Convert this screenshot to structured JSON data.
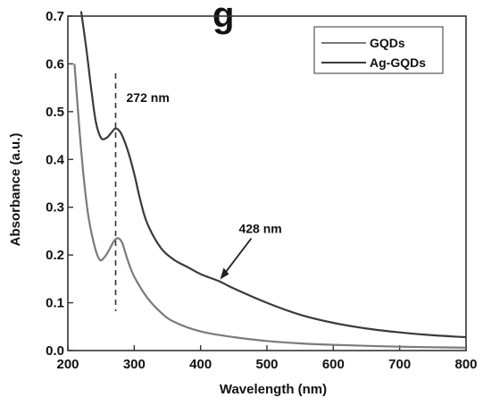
{
  "chart_data": {
    "type": "line",
    "panel_label": "g",
    "title": "",
    "xlabel": "Wavelength (nm)",
    "ylabel": "Absorbance (a.u.)",
    "xlim": [
      200,
      800
    ],
    "ylim": [
      0.0,
      0.7
    ],
    "x_ticks": [
      200,
      300,
      400,
      500,
      600,
      700,
      800
    ],
    "y_ticks": [
      0.0,
      0.1,
      0.2,
      0.3,
      0.4,
      0.5,
      0.6,
      0.7
    ],
    "y_tick_labels": [
      "0.0",
      "0.1",
      "0.2",
      "0.3",
      "0.4",
      "0.5",
      "0.6",
      "0.7"
    ],
    "grid": false,
    "legend_position": "top-right",
    "series": [
      {
        "name": "GQDs",
        "color": "#7a7a7a",
        "points": [
          [
            210,
            0.6
          ],
          [
            220,
            0.42
          ],
          [
            230,
            0.29
          ],
          [
            240,
            0.22
          ],
          [
            248,
            0.19
          ],
          [
            255,
            0.195
          ],
          [
            262,
            0.21
          ],
          [
            270,
            0.23
          ],
          [
            276,
            0.235
          ],
          [
            282,
            0.225
          ],
          [
            290,
            0.19
          ],
          [
            300,
            0.155
          ],
          [
            320,
            0.11
          ],
          [
            340,
            0.08
          ],
          [
            360,
            0.06
          ],
          [
            400,
            0.04
          ],
          [
            450,
            0.028
          ],
          [
            500,
            0.02
          ],
          [
            550,
            0.015
          ],
          [
            600,
            0.012
          ],
          [
            700,
            0.008
          ],
          [
            800,
            0.006
          ]
        ]
      },
      {
        "name": "Ag-GQDs",
        "color": "#3a3a3a",
        "points": [
          [
            220,
            0.71
          ],
          [
            228,
            0.63
          ],
          [
            235,
            0.55
          ],
          [
            242,
            0.48
          ],
          [
            250,
            0.445
          ],
          [
            258,
            0.445
          ],
          [
            265,
            0.455
          ],
          [
            272,
            0.465
          ],
          [
            280,
            0.455
          ],
          [
            290,
            0.42
          ],
          [
            300,
            0.37
          ],
          [
            310,
            0.31
          ],
          [
            320,
            0.265
          ],
          [
            340,
            0.215
          ],
          [
            360,
            0.19
          ],
          [
            380,
            0.175
          ],
          [
            400,
            0.16
          ],
          [
            428,
            0.145
          ],
          [
            450,
            0.13
          ],
          [
            500,
            0.1
          ],
          [
            550,
            0.075
          ],
          [
            600,
            0.058
          ],
          [
            650,
            0.046
          ],
          [
            700,
            0.038
          ],
          [
            750,
            0.032
          ],
          [
            800,
            0.028
          ]
        ]
      }
    ],
    "annotations": [
      {
        "id": "peak-272",
        "text": "272 nm",
        "x": 272,
        "type": "vertical-dashed-line"
      },
      {
        "id": "peak-428",
        "text": "428 nm",
        "x": 428,
        "y": 0.145,
        "type": "arrow"
      }
    ]
  }
}
